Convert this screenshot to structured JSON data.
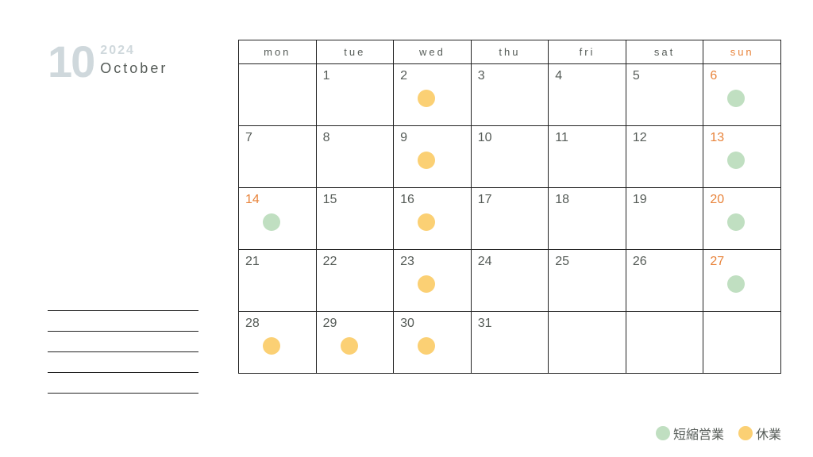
{
  "header": {
    "month_number": "10",
    "year": "2024",
    "month_name": "October"
  },
  "colors": {
    "short_hours": "#c0dfc1",
    "closed": "#fbd074",
    "highlight": "#e8833a",
    "text": "#555b57",
    "muted": "#cfd8dc",
    "border": "#222222",
    "background": "#ffffff"
  },
  "weekdays": [
    {
      "label": "mon",
      "is_sun": false
    },
    {
      "label": "tue",
      "is_sun": false
    },
    {
      "label": "wed",
      "is_sun": false
    },
    {
      "label": "thu",
      "is_sun": false
    },
    {
      "label": "fri",
      "is_sun": false
    },
    {
      "label": "sat",
      "is_sun": false
    },
    {
      "label": "sun",
      "is_sun": true
    }
  ],
  "weeks": [
    [
      {
        "day": "",
        "mark": null,
        "hl": false
      },
      {
        "day": "1",
        "mark": null,
        "hl": false
      },
      {
        "day": "2",
        "mark": "closed",
        "hl": false
      },
      {
        "day": "3",
        "mark": null,
        "hl": false
      },
      {
        "day": "4",
        "mark": null,
        "hl": false
      },
      {
        "day": "5",
        "mark": null,
        "hl": false
      },
      {
        "day": "6",
        "mark": "short_hours",
        "hl": true
      }
    ],
    [
      {
        "day": "7",
        "mark": null,
        "hl": false
      },
      {
        "day": "8",
        "mark": null,
        "hl": false
      },
      {
        "day": "9",
        "mark": "closed",
        "hl": false
      },
      {
        "day": "10",
        "mark": null,
        "hl": false
      },
      {
        "day": "11",
        "mark": null,
        "hl": false
      },
      {
        "day": "12",
        "mark": null,
        "hl": false
      },
      {
        "day": "13",
        "mark": "short_hours",
        "hl": true
      }
    ],
    [
      {
        "day": "14",
        "mark": "short_hours",
        "hl": true
      },
      {
        "day": "15",
        "mark": null,
        "hl": false
      },
      {
        "day": "16",
        "mark": "closed",
        "hl": false
      },
      {
        "day": "17",
        "mark": null,
        "hl": false
      },
      {
        "day": "18",
        "mark": null,
        "hl": false
      },
      {
        "day": "19",
        "mark": null,
        "hl": false
      },
      {
        "day": "20",
        "mark": "short_hours",
        "hl": true
      }
    ],
    [
      {
        "day": "21",
        "mark": null,
        "hl": false
      },
      {
        "day": "22",
        "mark": null,
        "hl": false
      },
      {
        "day": "23",
        "mark": "closed",
        "hl": false
      },
      {
        "day": "24",
        "mark": null,
        "hl": false
      },
      {
        "day": "25",
        "mark": null,
        "hl": false
      },
      {
        "day": "26",
        "mark": null,
        "hl": false
      },
      {
        "day": "27",
        "mark": "short_hours",
        "hl": true
      }
    ],
    [
      {
        "day": "28",
        "mark": "closed",
        "hl": false
      },
      {
        "day": "29",
        "mark": "closed",
        "hl": false
      },
      {
        "day": "30",
        "mark": "closed",
        "hl": false
      },
      {
        "day": "31",
        "mark": null,
        "hl": false
      },
      {
        "day": "",
        "mark": null,
        "hl": false
      },
      {
        "day": "",
        "mark": null,
        "hl": false
      },
      {
        "day": "",
        "mark": null,
        "hl": false
      }
    ]
  ],
  "legend": {
    "short_hours_label": "短縮営業",
    "closed_label": "休業"
  },
  "note_line_count": 5
}
